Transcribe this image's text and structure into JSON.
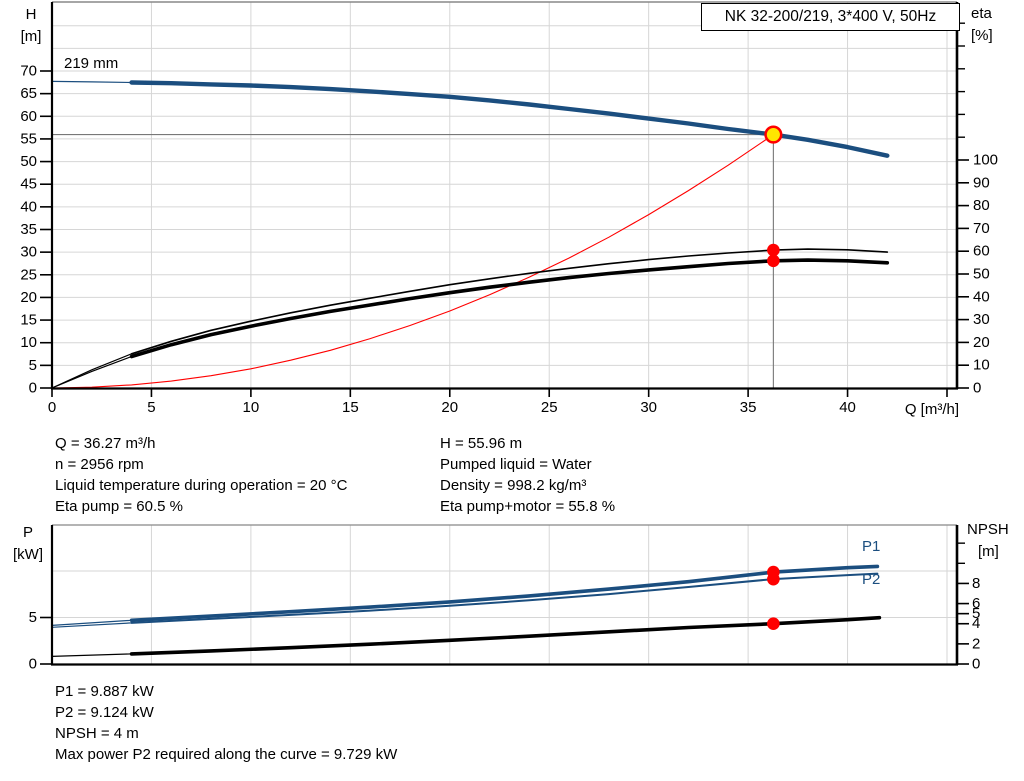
{
  "header": {
    "model_box": "NK 32-200/219, 3*400 V, 50Hz"
  },
  "colors": {
    "blue": "#1b4e7f",
    "red": "#ff0000",
    "black": "#000000",
    "yellow": "#ffe500",
    "grid": "#d6d6d6",
    "frame_gray": "#888888",
    "crosshair": "#787878",
    "axis": "#000000"
  },
  "info_top": {
    "left": [
      "Q = 36.27 m³/h",
      "n = 2956 rpm",
      "Liquid temperature during operation = 20 °C",
      "Eta pump = 60.5 %"
    ],
    "right": [
      "H = 55.96 m",
      "Pumped liquid = Water",
      "Density = 998.2 kg/m³",
      "Eta pump+motor = 55.8 %"
    ]
  },
  "info_bottom": {
    "lines": [
      "P1 = 9.887 kW",
      "P2 = 9.124 kW",
      "NPSH = 4 m",
      "Max power P2 required along the curve = 9.729 kW"
    ]
  },
  "chart_data": [
    {
      "type": "line",
      "name": "performance-chart",
      "title_box": "NK 32-200/219, 3*400 V, 50Hz",
      "impeller_label": "219 mm",
      "axes": {
        "left": {
          "label": "H",
          "unit": "[m]",
          "min": 0,
          "max": 70,
          "ticks": [
            0,
            5,
            10,
            15,
            20,
            25,
            30,
            35,
            40,
            45,
            50,
            55,
            60,
            65,
            70
          ]
        },
        "right": {
          "label": "eta",
          "unit": "[%]",
          "min": 0,
          "max": 100,
          "ticks": [
            0,
            10,
            20,
            30,
            40,
            50,
            60,
            70,
            80,
            90,
            100
          ],
          "unlabeled_ticks": [
            110,
            120,
            130,
            140,
            150,
            160
          ]
        },
        "x": {
          "label": "Q [m³/h]",
          "min": 0,
          "max": 45,
          "ticks": [
            0,
            5,
            10,
            15,
            20,
            25,
            30,
            35,
            40
          ],
          "unlabeled_ticks": [
            45
          ]
        }
      },
      "series": [
        {
          "name": "system-curve",
          "axis": "left",
          "color": "red",
          "width": 1.1,
          "lead_until": 0,
          "points": [
            [
              0,
              0
            ],
            [
              2,
              0.17
            ],
            [
              4,
              0.68
            ],
            [
              6,
              1.53
            ],
            [
              8,
              2.72
            ],
            [
              10,
              4.25
            ],
            [
              12,
              6.13
            ],
            [
              14,
              8.33
            ],
            [
              16,
              10.9
            ],
            [
              18,
              13.8
            ],
            [
              20,
              17.0
            ],
            [
              22,
              20.6
            ],
            [
              24,
              24.5
            ],
            [
              26,
              28.7
            ],
            [
              28,
              33.3
            ],
            [
              30,
              38.3
            ],
            [
              32,
              43.6
            ],
            [
              34,
              49.2
            ],
            [
              36.27,
              55.96
            ]
          ]
        },
        {
          "name": "eta-pump-curve",
          "axis": "right",
          "color": "black",
          "width": 1.6,
          "lead_until": 4,
          "points": [
            [
              0,
              0
            ],
            [
              2,
              8
            ],
            [
              4,
              15
            ],
            [
              6,
              20.5
            ],
            [
              8,
              25.3
            ],
            [
              10,
              29.3
            ],
            [
              12,
              33
            ],
            [
              14,
              36.3
            ],
            [
              16,
              39.4
            ],
            [
              18,
              42.4
            ],
            [
              20,
              45.3
            ],
            [
              22,
              47.9
            ],
            [
              24,
              50.3
            ],
            [
              26,
              52.5
            ],
            [
              28,
              54.5
            ],
            [
              30,
              56.3
            ],
            [
              32,
              57.9
            ],
            [
              34,
              59.2
            ],
            [
              36.27,
              60.5
            ],
            [
              38,
              60.9
            ],
            [
              40,
              60.6
            ],
            [
              42,
              59.6
            ]
          ]
        },
        {
          "name": "eta-pump-motor-curve",
          "axis": "right",
          "color": "black",
          "width": 3.6,
          "lead_until": 4,
          "points": [
            [
              0,
              0
            ],
            [
              2,
              7.3
            ],
            [
              4,
              13.8
            ],
            [
              6,
              19
            ],
            [
              8,
              23.4
            ],
            [
              10,
              27.1
            ],
            [
              12,
              30.5
            ],
            [
              14,
              33.6
            ],
            [
              16,
              36.4
            ],
            [
              18,
              39.2
            ],
            [
              20,
              41.8
            ],
            [
              22,
              44.2
            ],
            [
              24,
              46.4
            ],
            [
              26,
              48.4
            ],
            [
              28,
              50.2
            ],
            [
              30,
              51.8
            ],
            [
              32,
              53.2
            ],
            [
              34,
              54.6
            ],
            [
              36.27,
              55.8
            ],
            [
              38,
              56.1
            ],
            [
              40,
              55.8
            ],
            [
              42,
              54.9
            ]
          ]
        },
        {
          "name": "head-curve-219mm",
          "axis": "left",
          "color": "blue",
          "width": 4.4,
          "lead_until": 4,
          "points": [
            [
              0,
              67.7
            ],
            [
              2,
              67.6
            ],
            [
              4,
              67.45
            ],
            [
              6,
              67.3
            ],
            [
              8,
              67.05
            ],
            [
              10,
              66.8
            ],
            [
              12,
              66.45
            ],
            [
              14,
              66.0
            ],
            [
              16,
              65.5
            ],
            [
              18,
              64.9
            ],
            [
              20,
              64.3
            ],
            [
              22,
              63.5
            ],
            [
              24,
              62.6
            ],
            [
              26,
              61.6
            ],
            [
              28,
              60.6
            ],
            [
              30,
              59.5
            ],
            [
              32,
              58.4
            ],
            [
              34,
              57.2
            ],
            [
              36.27,
              55.96
            ],
            [
              38,
              54.8
            ],
            [
              40,
              53.2
            ],
            [
              42,
              51.3
            ]
          ]
        }
      ],
      "duty_point": {
        "q": 36.27,
        "h": 55.96,
        "eta_pump": 60.5,
        "eta_pump_motor": 55.8
      }
    },
    {
      "type": "line",
      "name": "power-npsh-chart",
      "axes": {
        "left": {
          "label": "P",
          "unit": "[kW]",
          "min": 0,
          "max": 15,
          "ticks": [
            0,
            5
          ],
          "gridlines": [
            5,
            10
          ]
        },
        "right": {
          "label": "NPSH",
          "unit": "[m]",
          "min": 0,
          "max": 13.8,
          "ticks": [
            0,
            2,
            4,
            5,
            6,
            8
          ],
          "unlabeled_ticks": [
            10,
            12
          ]
        },
        "x": {
          "label": "",
          "min": 0,
          "max": 45,
          "ticks": [],
          "unlabeled_ticks": [
            5,
            10,
            15,
            20,
            25,
            30,
            35,
            40,
            45
          ]
        }
      },
      "series": [
        {
          "name": "npsh-curve",
          "axis": "right",
          "color": "black",
          "width": 3.6,
          "lead_until": 4,
          "points": [
            [
              0,
              0.75
            ],
            [
              4,
              1.0
            ],
            [
              8,
              1.3
            ],
            [
              12,
              1.62
            ],
            [
              16,
              1.97
            ],
            [
              20,
              2.35
            ],
            [
              24,
              2.76
            ],
            [
              28,
              3.2
            ],
            [
              32,
              3.62
            ],
            [
              36.27,
              4.0
            ],
            [
              40,
              4.4
            ],
            [
              41.6,
              4.6
            ]
          ]
        },
        {
          "name": "p2-curve",
          "axis": "left",
          "color": "blue",
          "width": 2.0,
          "lead_until": 4,
          "points": [
            [
              0,
              3.95
            ],
            [
              4,
              4.42
            ],
            [
              8,
              4.85
            ],
            [
              12,
              5.28
            ],
            [
              16,
              5.74
            ],
            [
              20,
              6.26
            ],
            [
              24,
              6.85
            ],
            [
              28,
              7.52
            ],
            [
              32,
              8.28
            ],
            [
              36.27,
              9.124
            ],
            [
              38,
              9.33
            ],
            [
              40,
              9.56
            ],
            [
              41.5,
              9.72
            ]
          ]
        },
        {
          "name": "p1-curve",
          "axis": "left",
          "color": "blue",
          "width": 3.6,
          "lead_until": 4,
          "points": [
            [
              0,
              4.15
            ],
            [
              4,
              4.7
            ],
            [
              8,
              5.15
            ],
            [
              12,
              5.62
            ],
            [
              16,
              6.12
            ],
            [
              20,
              6.68
            ],
            [
              24,
              7.32
            ],
            [
              28,
              8.05
            ],
            [
              32,
              8.85
            ],
            [
              36.27,
              9.887
            ],
            [
              38,
              10.1
            ],
            [
              40,
              10.35
            ],
            [
              41.5,
              10.5
            ]
          ]
        }
      ],
      "series_labels": {
        "p1": "P1",
        "p2": "P2"
      },
      "duty_point": {
        "q": 36.27,
        "p1": 9.887,
        "p2": 9.124,
        "npsh": 4
      }
    }
  ]
}
